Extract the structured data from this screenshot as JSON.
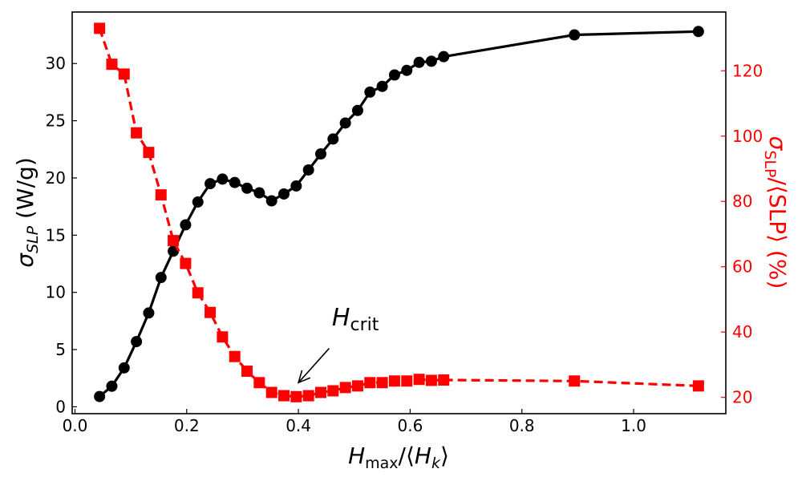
{
  "chart_data": {
    "type": "line",
    "title": "",
    "xlabel": "H_max/⟨H_k⟩",
    "xlabel_parts": {
      "main": "H",
      "sub": "max",
      "rest": "/⟨",
      "main2": "H",
      "sub2": "k",
      "tail": "⟩"
    },
    "ylabel_left_parts": {
      "main": "σ",
      "sub": "SLP",
      "rest": " (W/g)"
    },
    "ylabel_right_parts": {
      "main": "σ",
      "sub": "SLP",
      "rest": "/⟨SLP⟩ (%)"
    },
    "xlim": [
      -0.005,
      1.165
    ],
    "ylim_left": [
      -0.6,
      34.5
    ],
    "ylim_right": [
      15.0,
      138.0
    ],
    "x_ticks": [
      {
        "value": 0.0,
        "label": "0.0"
      },
      {
        "value": 0.2,
        "label": "0.2"
      },
      {
        "value": 0.4,
        "label": "0.4"
      },
      {
        "value": 0.6,
        "label": "0.6"
      },
      {
        "value": 0.8,
        "label": "0.8"
      },
      {
        "value": 1.0,
        "label": "1.0"
      }
    ],
    "y_left_ticks": [
      {
        "value": 0,
        "label": "0"
      },
      {
        "value": 5,
        "label": "5"
      },
      {
        "value": 10,
        "label": "10"
      },
      {
        "value": 15,
        "label": "15"
      },
      {
        "value": 20,
        "label": "20"
      },
      {
        "value": 25,
        "label": "25"
      },
      {
        "value": 30,
        "label": "30"
      }
    ],
    "y_right_ticks": [
      {
        "value": 20,
        "label": "20"
      },
      {
        "value": 40,
        "label": "40"
      },
      {
        "value": 60,
        "label": "60"
      },
      {
        "value": 80,
        "label": "80"
      },
      {
        "value": 100,
        "label": "100"
      },
      {
        "value": 120,
        "label": "120"
      }
    ],
    "series": [
      {
        "name": "sigma_SLP (W/g)",
        "axis": "left",
        "color": "#000000",
        "marker": "circle",
        "line_style": "solid",
        "x": [
          0.044,
          0.066,
          0.088,
          0.11,
          0.132,
          0.154,
          0.176,
          0.198,
          0.22,
          0.242,
          0.264,
          0.286,
          0.308,
          0.33,
          0.352,
          0.374,
          0.396,
          0.418,
          0.44,
          0.462,
          0.484,
          0.506,
          0.528,
          0.55,
          0.572,
          0.594,
          0.616,
          0.638,
          0.66,
          0.894,
          1.116
        ],
        "y": [
          0.9,
          1.8,
          3.4,
          5.7,
          8.2,
          11.3,
          13.6,
          15.9,
          17.9,
          19.5,
          19.9,
          19.6,
          19.1,
          18.7,
          18.0,
          18.6,
          19.3,
          20.7,
          22.1,
          23.4,
          24.8,
          25.9,
          27.5,
          28.0,
          29.0,
          29.4,
          30.1,
          30.2,
          30.6,
          32.5,
          32.8
        ]
      },
      {
        "name": "sigma_SLP/<SLP> (%)",
        "axis": "right",
        "color": "#ff0000",
        "marker": "square",
        "line_style": "dashed",
        "x": [
          0.044,
          0.066,
          0.088,
          0.11,
          0.132,
          0.154,
          0.176,
          0.198,
          0.22,
          0.242,
          0.264,
          0.286,
          0.308,
          0.33,
          0.352,
          0.374,
          0.396,
          0.418,
          0.44,
          0.462,
          0.484,
          0.506,
          0.528,
          0.55,
          0.572,
          0.594,
          0.616,
          0.638,
          0.66,
          0.894,
          1.116
        ],
        "y": [
          133,
          122,
          119,
          101,
          95,
          82,
          68,
          61,
          52,
          46,
          38.5,
          32.5,
          28,
          24.5,
          21.5,
          20.5,
          20.2,
          20.5,
          21.5,
          22,
          23,
          23.5,
          24.5,
          24.5,
          25,
          25,
          25.5,
          25.2,
          25.3,
          25,
          23.5
        ]
      }
    ],
    "annotation": {
      "text_main": "H",
      "text_sub": "crit",
      "text_at": [
        0.46,
        42
      ],
      "arrow_from": [
        0.455,
        35
      ],
      "arrow_to": [
        0.4,
        24.5
      ],
      "axis": "right"
    }
  }
}
